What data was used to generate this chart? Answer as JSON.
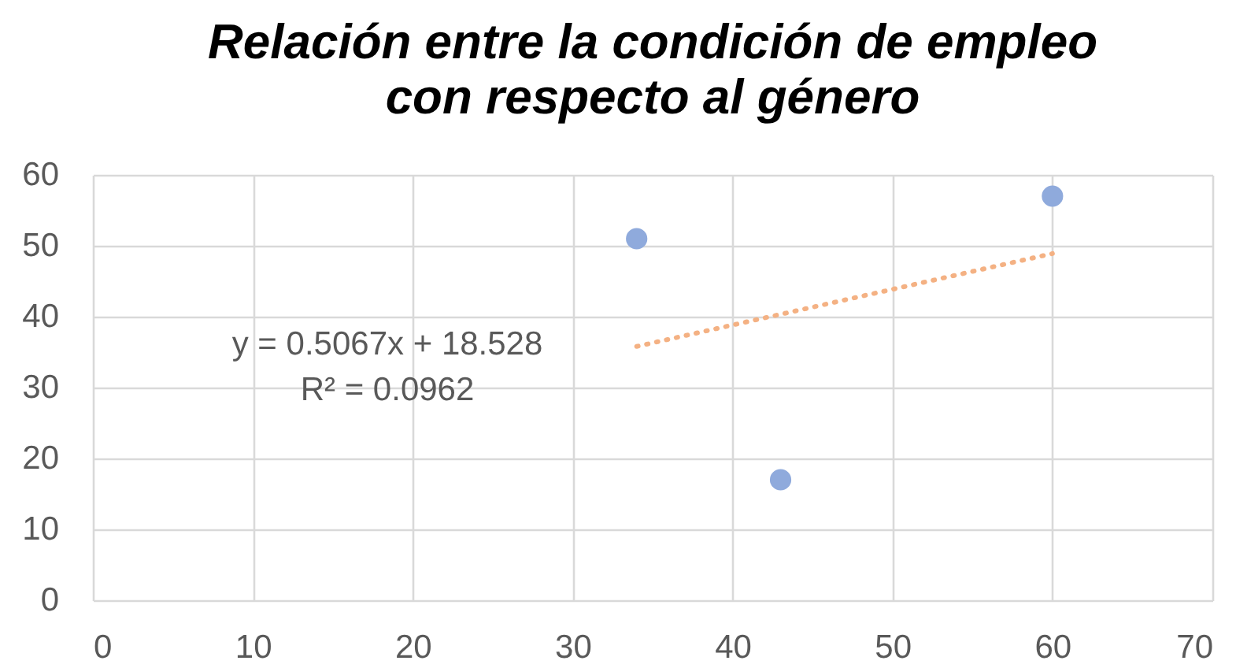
{
  "chart_data": {
    "type": "scatter",
    "title": "Relación entre la condición de empleo con respecto al género",
    "xlim": [
      0,
      70
    ],
    "xticks": [
      0,
      10,
      20,
      30,
      40,
      50,
      60,
      70
    ],
    "ylim": [
      0,
      60
    ],
    "yticks": [
      0,
      10,
      20,
      30,
      40,
      50,
      60
    ],
    "grid": true,
    "series": [
      {
        "type": "scatter",
        "color": "#8faadc",
        "marker": "circle",
        "x": [
          34,
          43,
          60
        ],
        "values": [
          51,
          17,
          57
        ]
      },
      {
        "type": "line",
        "color": "#f4b183",
        "line_style": "dotted",
        "x": [
          34,
          60
        ],
        "values": [
          35.8,
          48.9
        ]
      }
    ],
    "annotations": [
      "y = 0.5067x + 18.528",
      "R² = 0.0962"
    ]
  }
}
